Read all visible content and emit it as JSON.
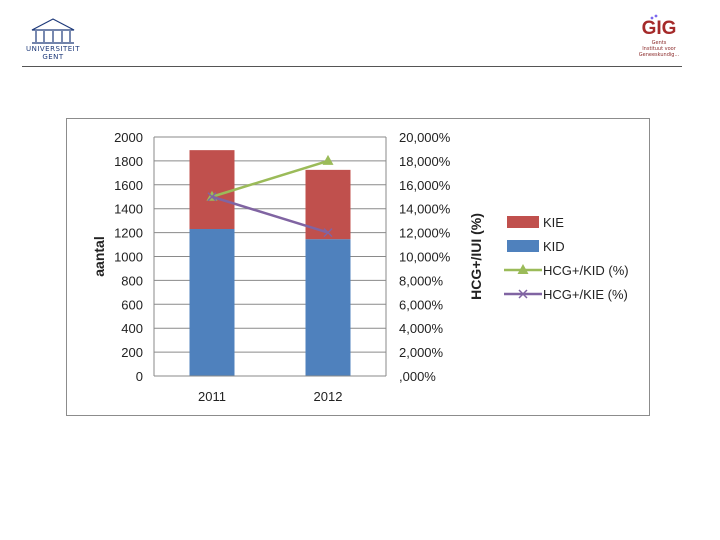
{
  "header": {
    "ugent_logo_text": [
      "UNIVERSITEIT",
      "GENT"
    ],
    "gig_logo_text": "GIG",
    "gig_logo_lines": [
      "Gents",
      "Instituut voor",
      "Geneeskundig..."
    ]
  },
  "chart_data": {
    "type": "bar",
    "stacked": true,
    "categories": [
      "2011",
      "2012"
    ],
    "ylabel": "aantal",
    "y2label": "HCG+/IUI (%)",
    "ylim": [
      0,
      2000
    ],
    "y2lim": [
      0,
      20
    ],
    "yticks": [
      "0",
      "200",
      "400",
      "600",
      "800",
      "1000",
      "1200",
      "1400",
      "1600",
      "1800",
      "2000"
    ],
    "y2ticks": [
      ",000%",
      "2,000%",
      "4,000%",
      "6,000%",
      "8,000%",
      "10,000%",
      "12,000%",
      "14,000%",
      "16,000%",
      "18,000%",
      "20,000%"
    ],
    "series": [
      {
        "name": "KID",
        "kind": "bar",
        "color": "#4f81bd",
        "values": [
          1230,
          1145
        ]
      },
      {
        "name": "KIE",
        "kind": "bar",
        "color": "#c0504d",
        "values": [
          660,
          580
        ]
      },
      {
        "name": "HCG+/KID (%)",
        "kind": "line",
        "axis": "right",
        "color": "#9bbb59",
        "marker": "triangle",
        "values": [
          15.0,
          18.0
        ]
      },
      {
        "name": "HCG+/KIE (%)",
        "kind": "line",
        "axis": "right",
        "color": "#8064a2",
        "marker": "x",
        "values": [
          15.0,
          12.0
        ]
      }
    ],
    "legend": {
      "position": "right",
      "labels": [
        "KIE",
        "KID",
        "HCG+/KID (%)",
        "HCG+/KIE (%)"
      ]
    },
    "grid": true
  }
}
